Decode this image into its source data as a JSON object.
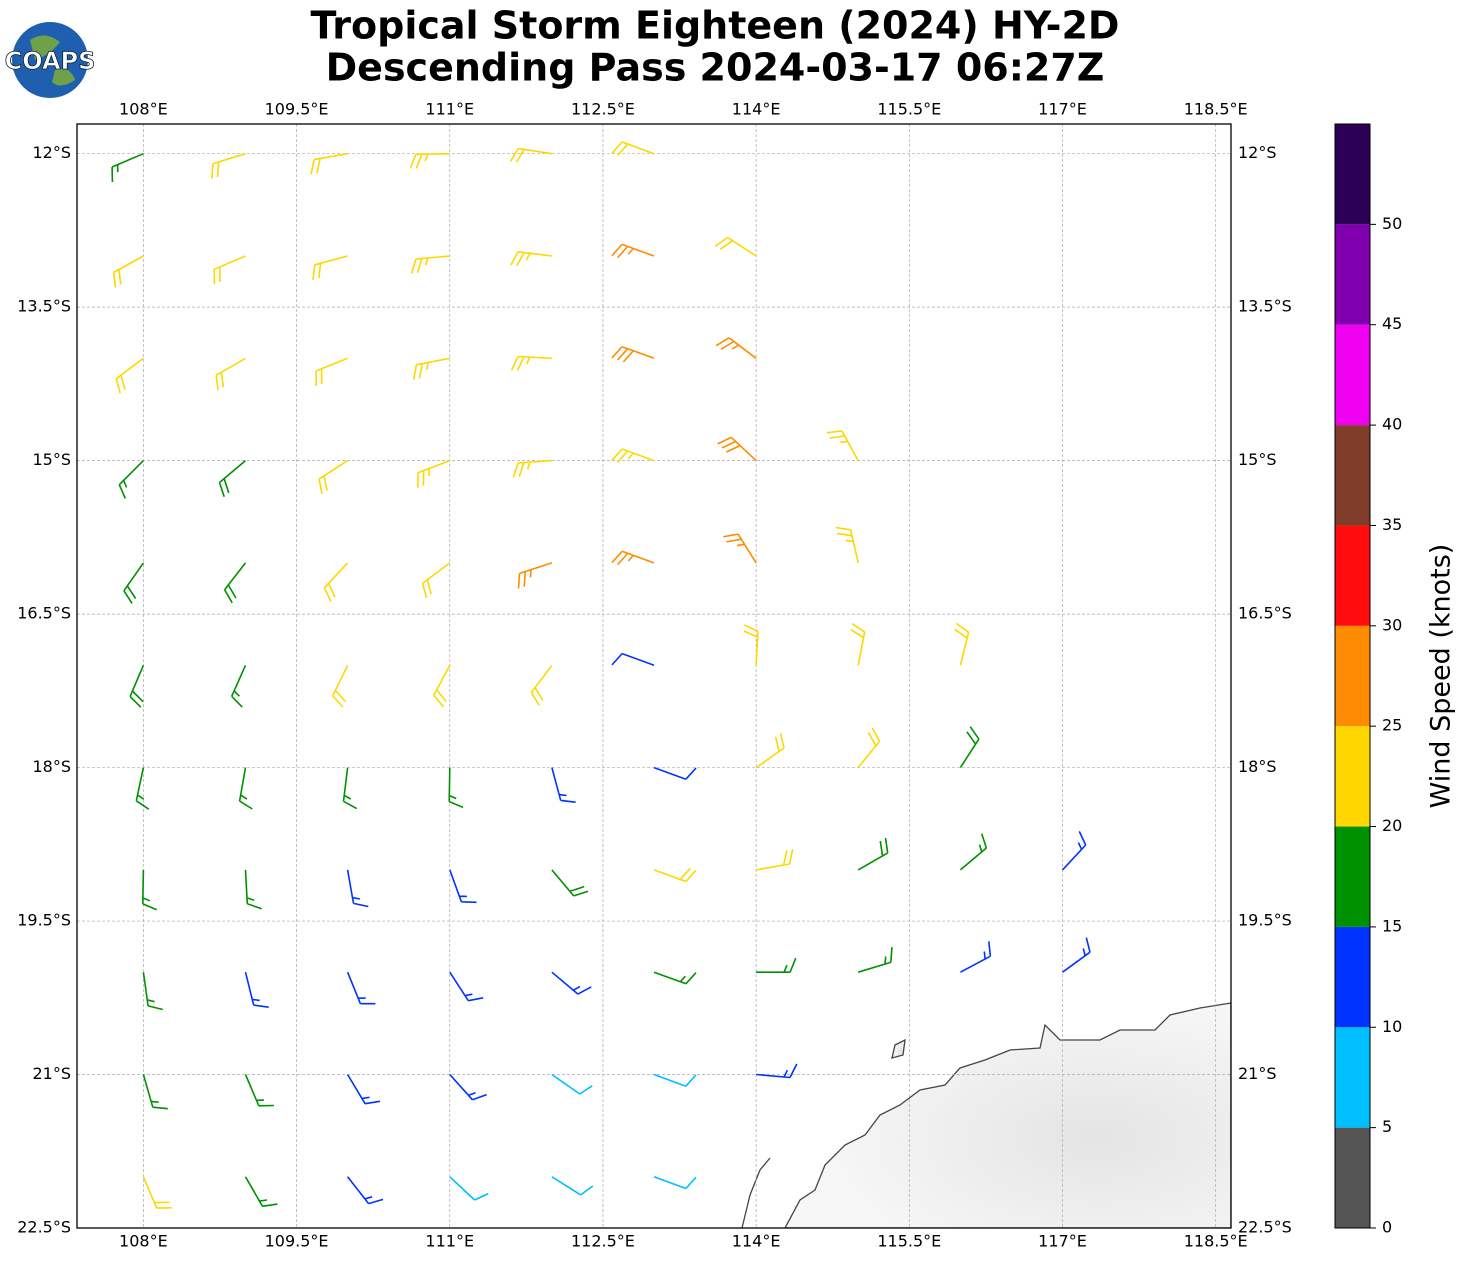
{
  "logo": "COAPS",
  "chart_data": {
    "type": "barbs",
    "title": "Tropical Storm Eighteen (2024) HY-2D",
    "subtitle": "Descending Pass 2024-03-17 06:27Z",
    "xlim": [
      107.35,
      118.65
    ],
    "xticks": [
      {
        "value": 108,
        "label": "108°E"
      },
      {
        "value": 109.5,
        "label": "109.5°E"
      },
      {
        "value": 111,
        "label": "111°E"
      },
      {
        "value": 112.5,
        "label": "112.5°E"
      },
      {
        "value": 114,
        "label": "114°E"
      },
      {
        "value": 115.5,
        "label": "115.5°E"
      },
      {
        "value": 117,
        "label": "117°E"
      },
      {
        "value": 118.5,
        "label": "118.5°E"
      }
    ],
    "ylim": [
      -22.5,
      -11.71
    ],
    "yticks": [
      {
        "value": -12,
        "label": "12°S"
      },
      {
        "value": -13.5,
        "label": "13.5°S"
      },
      {
        "value": -15,
        "label": "15°S"
      },
      {
        "value": -16.5,
        "label": "16.5°S"
      },
      {
        "value": -18,
        "label": "18°S"
      },
      {
        "value": -19.5,
        "label": "19.5°S"
      },
      {
        "value": -21,
        "label": "21°S"
      },
      {
        "value": -22.5,
        "label": "22.5°S"
      }
    ],
    "grid": true,
    "barbs": {
      "lon": [
        108,
        109,
        110,
        111,
        112,
        113,
        108,
        109,
        110,
        111,
        112,
        113,
        114,
        108,
        109,
        110,
        111,
        112,
        113,
        114,
        108,
        109,
        110,
        111,
        112,
        113,
        114,
        115,
        108,
        109,
        110,
        111,
        112,
        113,
        114,
        115,
        108,
        109,
        110,
        111,
        112,
        113,
        114,
        115,
        116,
        108,
        109,
        110,
        111,
        112,
        113,
        114,
        115,
        116,
        108,
        109,
        110,
        111,
        112,
        113,
        114,
        115,
        116,
        117,
        108,
        109,
        110,
        111,
        112,
        113,
        114,
        115,
        116,
        117,
        108,
        109,
        110,
        111,
        112,
        113,
        114,
        108,
        109,
        110,
        111,
        112,
        113
      ],
      "lat": [
        -12,
        -12,
        -12,
        -12,
        -12,
        -12,
        -13,
        -13,
        -13,
        -13,
        -13,
        -13,
        -13,
        -14,
        -14,
        -14,
        -14,
        -14,
        -14,
        -14,
        -15,
        -15,
        -15,
        -15,
        -15,
        -15,
        -15,
        -15,
        -16,
        -16,
        -16,
        -16,
        -16,
        -16,
        -16,
        -16,
        -17,
        -17,
        -17,
        -17,
        -17,
        -17,
        -17,
        -17,
        -17,
        -18,
        -18,
        -18,
        -18,
        -18,
        -18,
        -18,
        -18,
        -18,
        -19,
        -19,
        -19,
        -19,
        -19,
        -19,
        -19,
        -19,
        -19,
        -19,
        -20,
        -20,
        -20,
        -20,
        -20,
        -20,
        -20,
        -20,
        -20,
        -20,
        -21,
        -21,
        -21,
        -21,
        -21,
        -21,
        -21,
        -22,
        -22,
        -22,
        -22,
        -22,
        -22
      ],
      "speed": [
        17,
        22,
        22,
        23,
        22,
        22,
        21,
        22,
        22,
        23,
        24,
        27,
        22,
        22,
        22,
        22,
        23,
        24,
        28,
        27,
        17,
        18,
        22,
        23,
        23,
        24,
        28,
        23,
        18,
        18,
        21,
        22,
        27,
        27,
        27,
        23,
        18,
        17,
        20,
        22,
        22,
        11,
        22,
        22,
        20,
        17,
        17,
        17,
        15,
        14,
        12,
        22,
        22,
        18,
        17,
        17,
        13,
        13,
        18,
        22,
        22,
        18,
        17,
        13,
        17,
        13,
        13,
        13,
        13,
        17,
        17,
        17,
        13,
        13,
        17,
        17,
        13,
        13,
        8,
        8,
        13,
        22,
        17,
        13,
        8,
        8,
        8
      ],
      "dir": [
        247,
        253,
        260,
        269,
        279,
        290,
        241,
        247,
        255,
        265,
        277,
        290,
        303,
        233,
        240,
        248,
        259,
        273,
        290,
        307,
        225,
        230,
        237,
        249,
        266,
        290,
        313,
        331,
        215,
        218,
        223,
        233,
        252,
        290,
        328,
        347,
        203,
        204,
        206,
        208,
        217,
        290,
        3,
        11,
        14,
        192,
        190,
        187,
        181,
        165,
        110,
        55,
        39,
        33,
        181,
        177,
        170,
        160,
        140,
        110,
        80,
        60,
        50,
        43,
        172,
        166,
        158,
        147,
        130,
        110,
        90,
        73,
        62,
        54,
        164,
        157,
        149,
        138,
        125,
        110,
        95,
        157,
        150,
        142,
        133,
        122,
        110
      ]
    },
    "colorbar": {
      "label": "Wind Speed (knots)",
      "levels": [
        0,
        5,
        10,
        15,
        20,
        25,
        30,
        35,
        40,
        45,
        50,
        55
      ],
      "colors": [
        "#555555",
        "#00bfff",
        "#0033ff",
        "#009100",
        "#ffd700",
        "#ff8c00",
        "#ff0d0d",
        "#803e2a",
        "#f000f0",
        "#8000b0",
        "#2c0057"
      ],
      "ticks": [
        0,
        5,
        10,
        15,
        20,
        25,
        30,
        35,
        40,
        45,
        50
      ]
    }
  }
}
